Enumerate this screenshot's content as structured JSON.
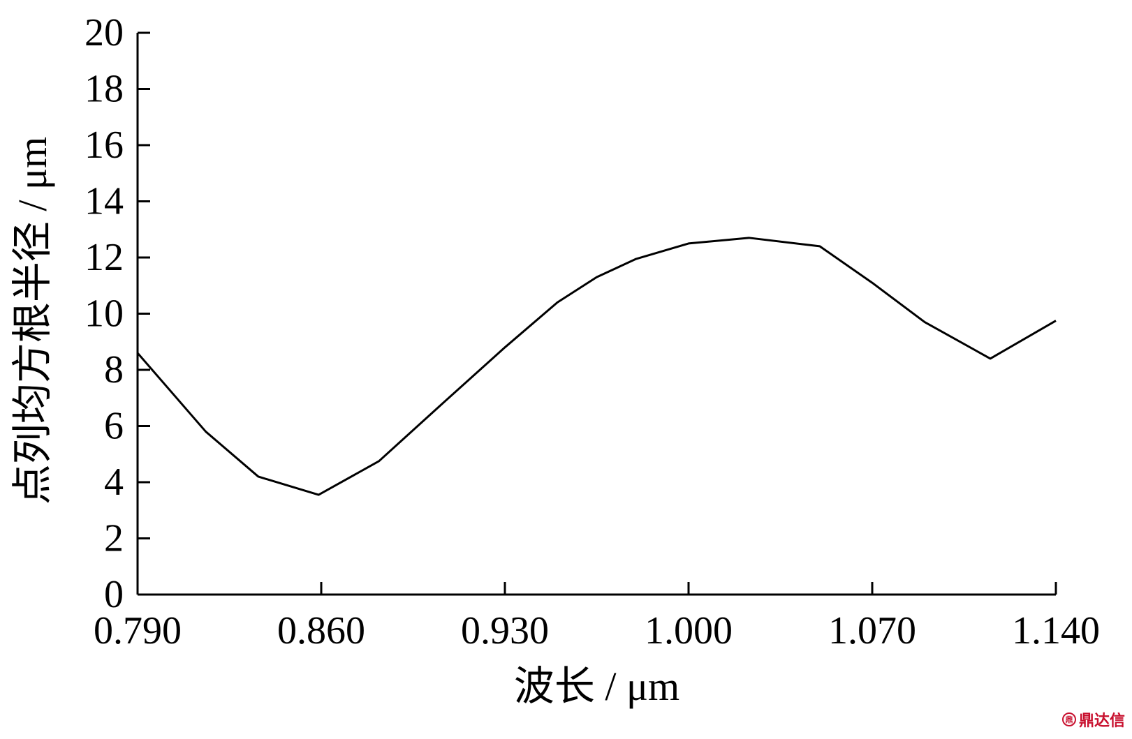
{
  "chart_data": {
    "type": "line",
    "title": "",
    "xlabel": "波长 / μm",
    "ylabel": "点列均方根半径 / μm",
    "xlim": [
      0.79,
      1.14
    ],
    "ylim": [
      0,
      20
    ],
    "x_ticks": [
      0.79,
      0.86,
      0.93,
      1.0,
      1.07,
      1.14
    ],
    "x_tick_labels": [
      "0.790",
      "0.860",
      "0.930",
      "1.000",
      "1.070",
      "1.140"
    ],
    "y_ticks": [
      0,
      2,
      4,
      6,
      8,
      10,
      12,
      14,
      16,
      18,
      20
    ],
    "y_tick_labels": [
      "0",
      "2",
      "4",
      "6",
      "8",
      "10",
      "12",
      "14",
      "16",
      "18",
      "20"
    ],
    "grid": false,
    "series": [
      {
        "x": [
          0.79,
          0.816,
          0.836,
          0.859,
          0.882,
          0.905,
          0.93,
          0.95,
          0.965,
          0.98,
          1.0,
          1.023,
          1.05,
          1.07,
          1.09,
          1.115,
          1.14
        ],
        "y": [
          8.6,
          5.8,
          4.2,
          3.55,
          4.75,
          6.7,
          8.8,
          10.4,
          11.3,
          11.95,
          12.5,
          12.7,
          12.4,
          11.1,
          9.7,
          8.4,
          9.75
        ]
      }
    ]
  },
  "watermark": {
    "seal_text": "鼎",
    "text": "鼎达信"
  }
}
